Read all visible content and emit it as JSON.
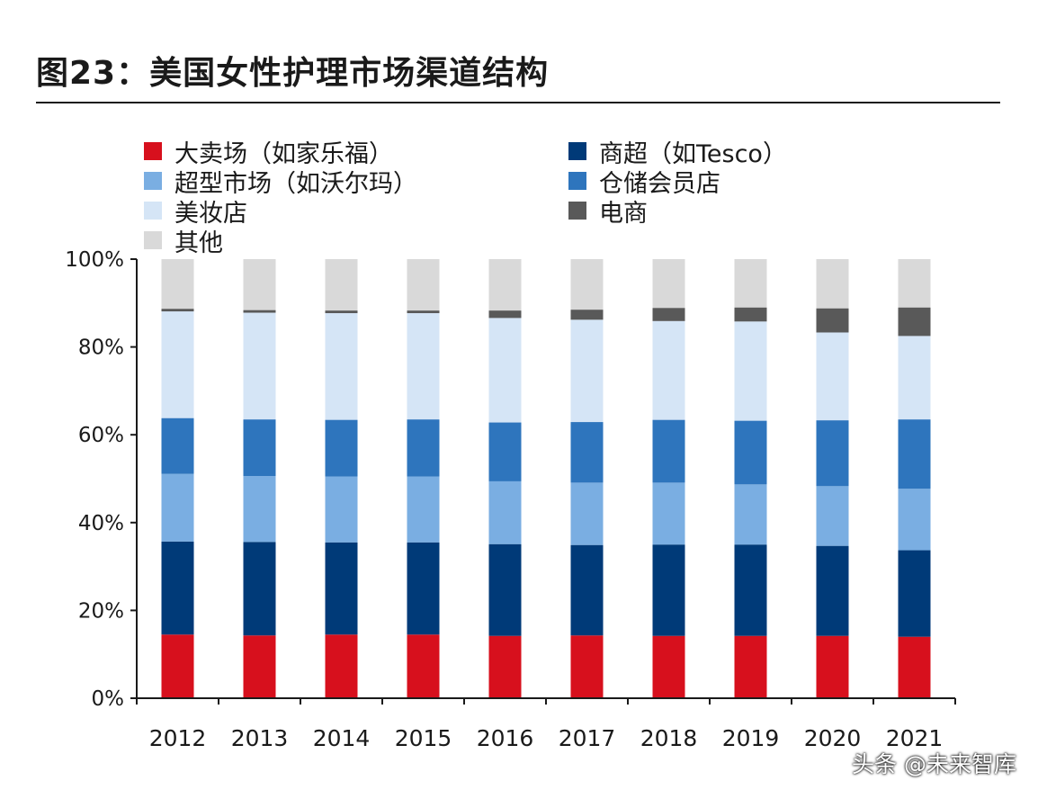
{
  "title": "图23：美国女性护理市场渠道结构",
  "watermark": "头条 @未来智库",
  "chart_data": {
    "type": "bar",
    "stacked": true,
    "categories": [
      "2012",
      "2013",
      "2014",
      "2015",
      "2016",
      "2017",
      "2018",
      "2019",
      "2020",
      "2021"
    ],
    "ylim": [
      0,
      100
    ],
    "yticks": [
      "0%",
      "20%",
      "40%",
      "60%",
      "80%",
      "100%"
    ],
    "series": [
      {
        "name": "大卖场（如家乐福）",
        "color": "#d7101d",
        "values": [
          14.5,
          14.3,
          14.5,
          14.5,
          14.2,
          14.3,
          14.2,
          14.2,
          14.2,
          14.0
        ]
      },
      {
        "name": "商超（如Tesco）",
        "color": "#003a78",
        "values": [
          21.2,
          21.3,
          21.0,
          21.0,
          20.9,
          20.6,
          20.8,
          20.8,
          20.5,
          19.7
        ]
      },
      {
        "name": "超型市场（如沃尔玛）",
        "color": "#7aaee2",
        "values": [
          15.4,
          15.0,
          15.0,
          15.0,
          14.3,
          14.2,
          14.1,
          13.7,
          13.6,
          14.0
        ]
      },
      {
        "name": "仓储会员店",
        "color": "#2e75bd",
        "values": [
          12.7,
          12.9,
          12.9,
          13.0,
          13.4,
          13.8,
          14.3,
          14.5,
          15.0,
          15.8
        ]
      },
      {
        "name": "美妆店",
        "color": "#d5e5f6",
        "values": [
          24.3,
          24.3,
          24.3,
          24.2,
          23.8,
          23.3,
          22.5,
          22.6,
          20.0,
          19.0
        ]
      },
      {
        "name": "电商",
        "color": "#595959",
        "values": [
          0.6,
          0.6,
          0.6,
          0.6,
          1.7,
          2.3,
          3.0,
          3.2,
          5.5,
          6.5
        ]
      },
      {
        "name": "其他",
        "color": "#d9d9d9",
        "values": [
          11.3,
          11.6,
          11.7,
          11.7,
          11.7,
          11.5,
          11.1,
          11.0,
          11.2,
          11.0
        ]
      }
    ]
  }
}
